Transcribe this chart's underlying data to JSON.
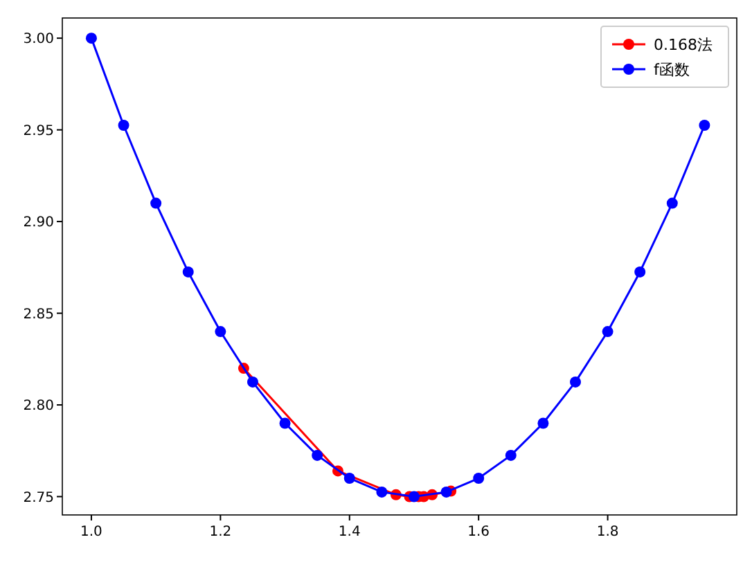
{
  "chart_data": {
    "type": "line",
    "xlim": [
      0.955,
      2.0
    ],
    "ylim": [
      2.74,
      3.011
    ],
    "xticks": [
      {
        "value": 1.0,
        "label": "1.0"
      },
      {
        "value": 1.2,
        "label": "1.2"
      },
      {
        "value": 1.4,
        "label": "1.4"
      },
      {
        "value": 1.6,
        "label": "1.6"
      },
      {
        "value": 1.8,
        "label": "1.8"
      }
    ],
    "yticks": [
      {
        "value": 2.75,
        "label": "2.75"
      },
      {
        "value": 2.8,
        "label": "2.80"
      },
      {
        "value": 2.85,
        "label": "2.85"
      },
      {
        "value": 2.9,
        "label": "2.90"
      },
      {
        "value": 2.95,
        "label": "2.95"
      },
      {
        "value": 3.0,
        "label": "3.00"
      }
    ],
    "series": [
      {
        "name": "0.168法",
        "color": "#ff0000",
        "x": [
          1.236,
          1.382,
          1.472,
          1.493,
          1.507,
          1.515,
          1.528,
          1.557
        ],
        "values": [
          2.82,
          2.764,
          2.751,
          2.75,
          2.75,
          2.75,
          2.751,
          2.753
        ]
      },
      {
        "name": "f函数",
        "color": "#0000ff",
        "x": [
          1.0,
          1.05,
          1.1,
          1.15,
          1.2,
          1.25,
          1.3,
          1.35,
          1.4,
          1.45,
          1.5,
          1.55,
          1.6,
          1.65,
          1.7,
          1.75,
          1.8,
          1.85,
          1.9,
          1.95
        ],
        "values": [
          3.0,
          2.9525,
          2.91,
          2.8725,
          2.84,
          2.8125,
          2.79,
          2.7725,
          2.76,
          2.7525,
          2.75,
          2.7525,
          2.76,
          2.7725,
          2.79,
          2.8125,
          2.84,
          2.8725,
          2.91,
          2.9525
        ]
      }
    ],
    "legend": "top right",
    "marker": "circle",
    "grid": false
  }
}
